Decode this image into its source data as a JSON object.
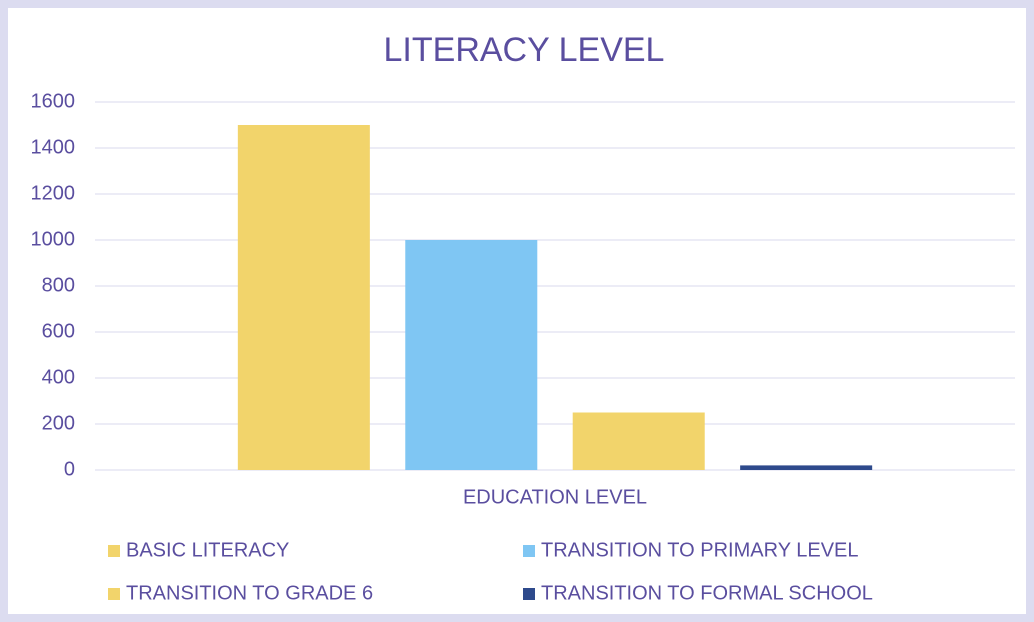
{
  "chart_data": {
    "type": "bar",
    "title": "LITERACY LEVEL",
    "categories": [
      "EDUCATION LEVEL"
    ],
    "series": [
      {
        "name": "BASIC LITERACY",
        "color": "#f2d46b",
        "values": [
          1500
        ]
      },
      {
        "name": "TRANSITION TO PRIMARY LEVEL",
        "color": "#7fc6f3",
        "values": [
          1000
        ]
      },
      {
        "name": "TRANSITION TO GRADE 6",
        "color": "#f2d46b",
        "values": [
          250
        ]
      },
      {
        "name": "TRANSITION TO FORMAL SCHOOL",
        "color": "#2e4a8c",
        "values": [
          20
        ]
      }
    ],
    "ylim": [
      0,
      1600
    ],
    "yticks": [
      0,
      200,
      400,
      600,
      800,
      1000,
      1200,
      1400,
      1600
    ],
    "grid": true,
    "legend": "bottom"
  }
}
